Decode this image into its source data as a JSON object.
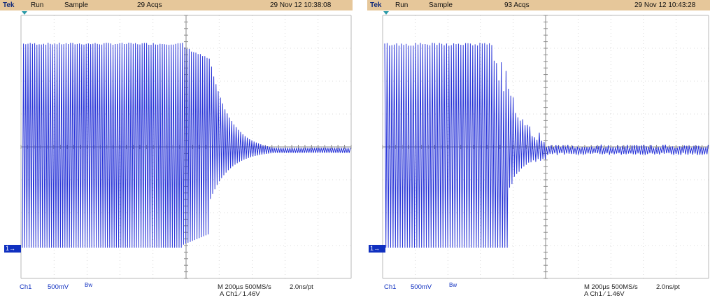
{
  "scopes": [
    {
      "id": "left",
      "brand": "Tek",
      "state": "Run",
      "mode": "Sample",
      "acqs": "29 Acqs",
      "timestamp": "29 Nov 12 10:38:08",
      "channel": "Ch1",
      "volts_per_div": "500mV",
      "bw_label": "Bw",
      "timebase": "M 200µs 500MS/s",
      "resolution": "2.0ns/pt",
      "trigger": "A  Ch1  ⁄  1.46V",
      "marker": "1→"
    },
    {
      "id": "right",
      "brand": "Tek",
      "state": "Run",
      "mode": "Sample",
      "acqs": "93 Acqs",
      "timestamp": "29 Nov 12 10:43:28",
      "channel": "Ch1",
      "volts_per_div": "500mV",
      "bw_label": "Bw",
      "timebase": "M 200µs 500MS/s",
      "resolution": "2.0ns/pt",
      "trigger": "A  Ch1  ⁄  1.46V",
      "marker": "1→"
    }
  ],
  "colors": {
    "trace": "#2a36d8",
    "grid": "#b8b8b8",
    "header": "#e6c79a",
    "accent": "#1030c0"
  }
}
